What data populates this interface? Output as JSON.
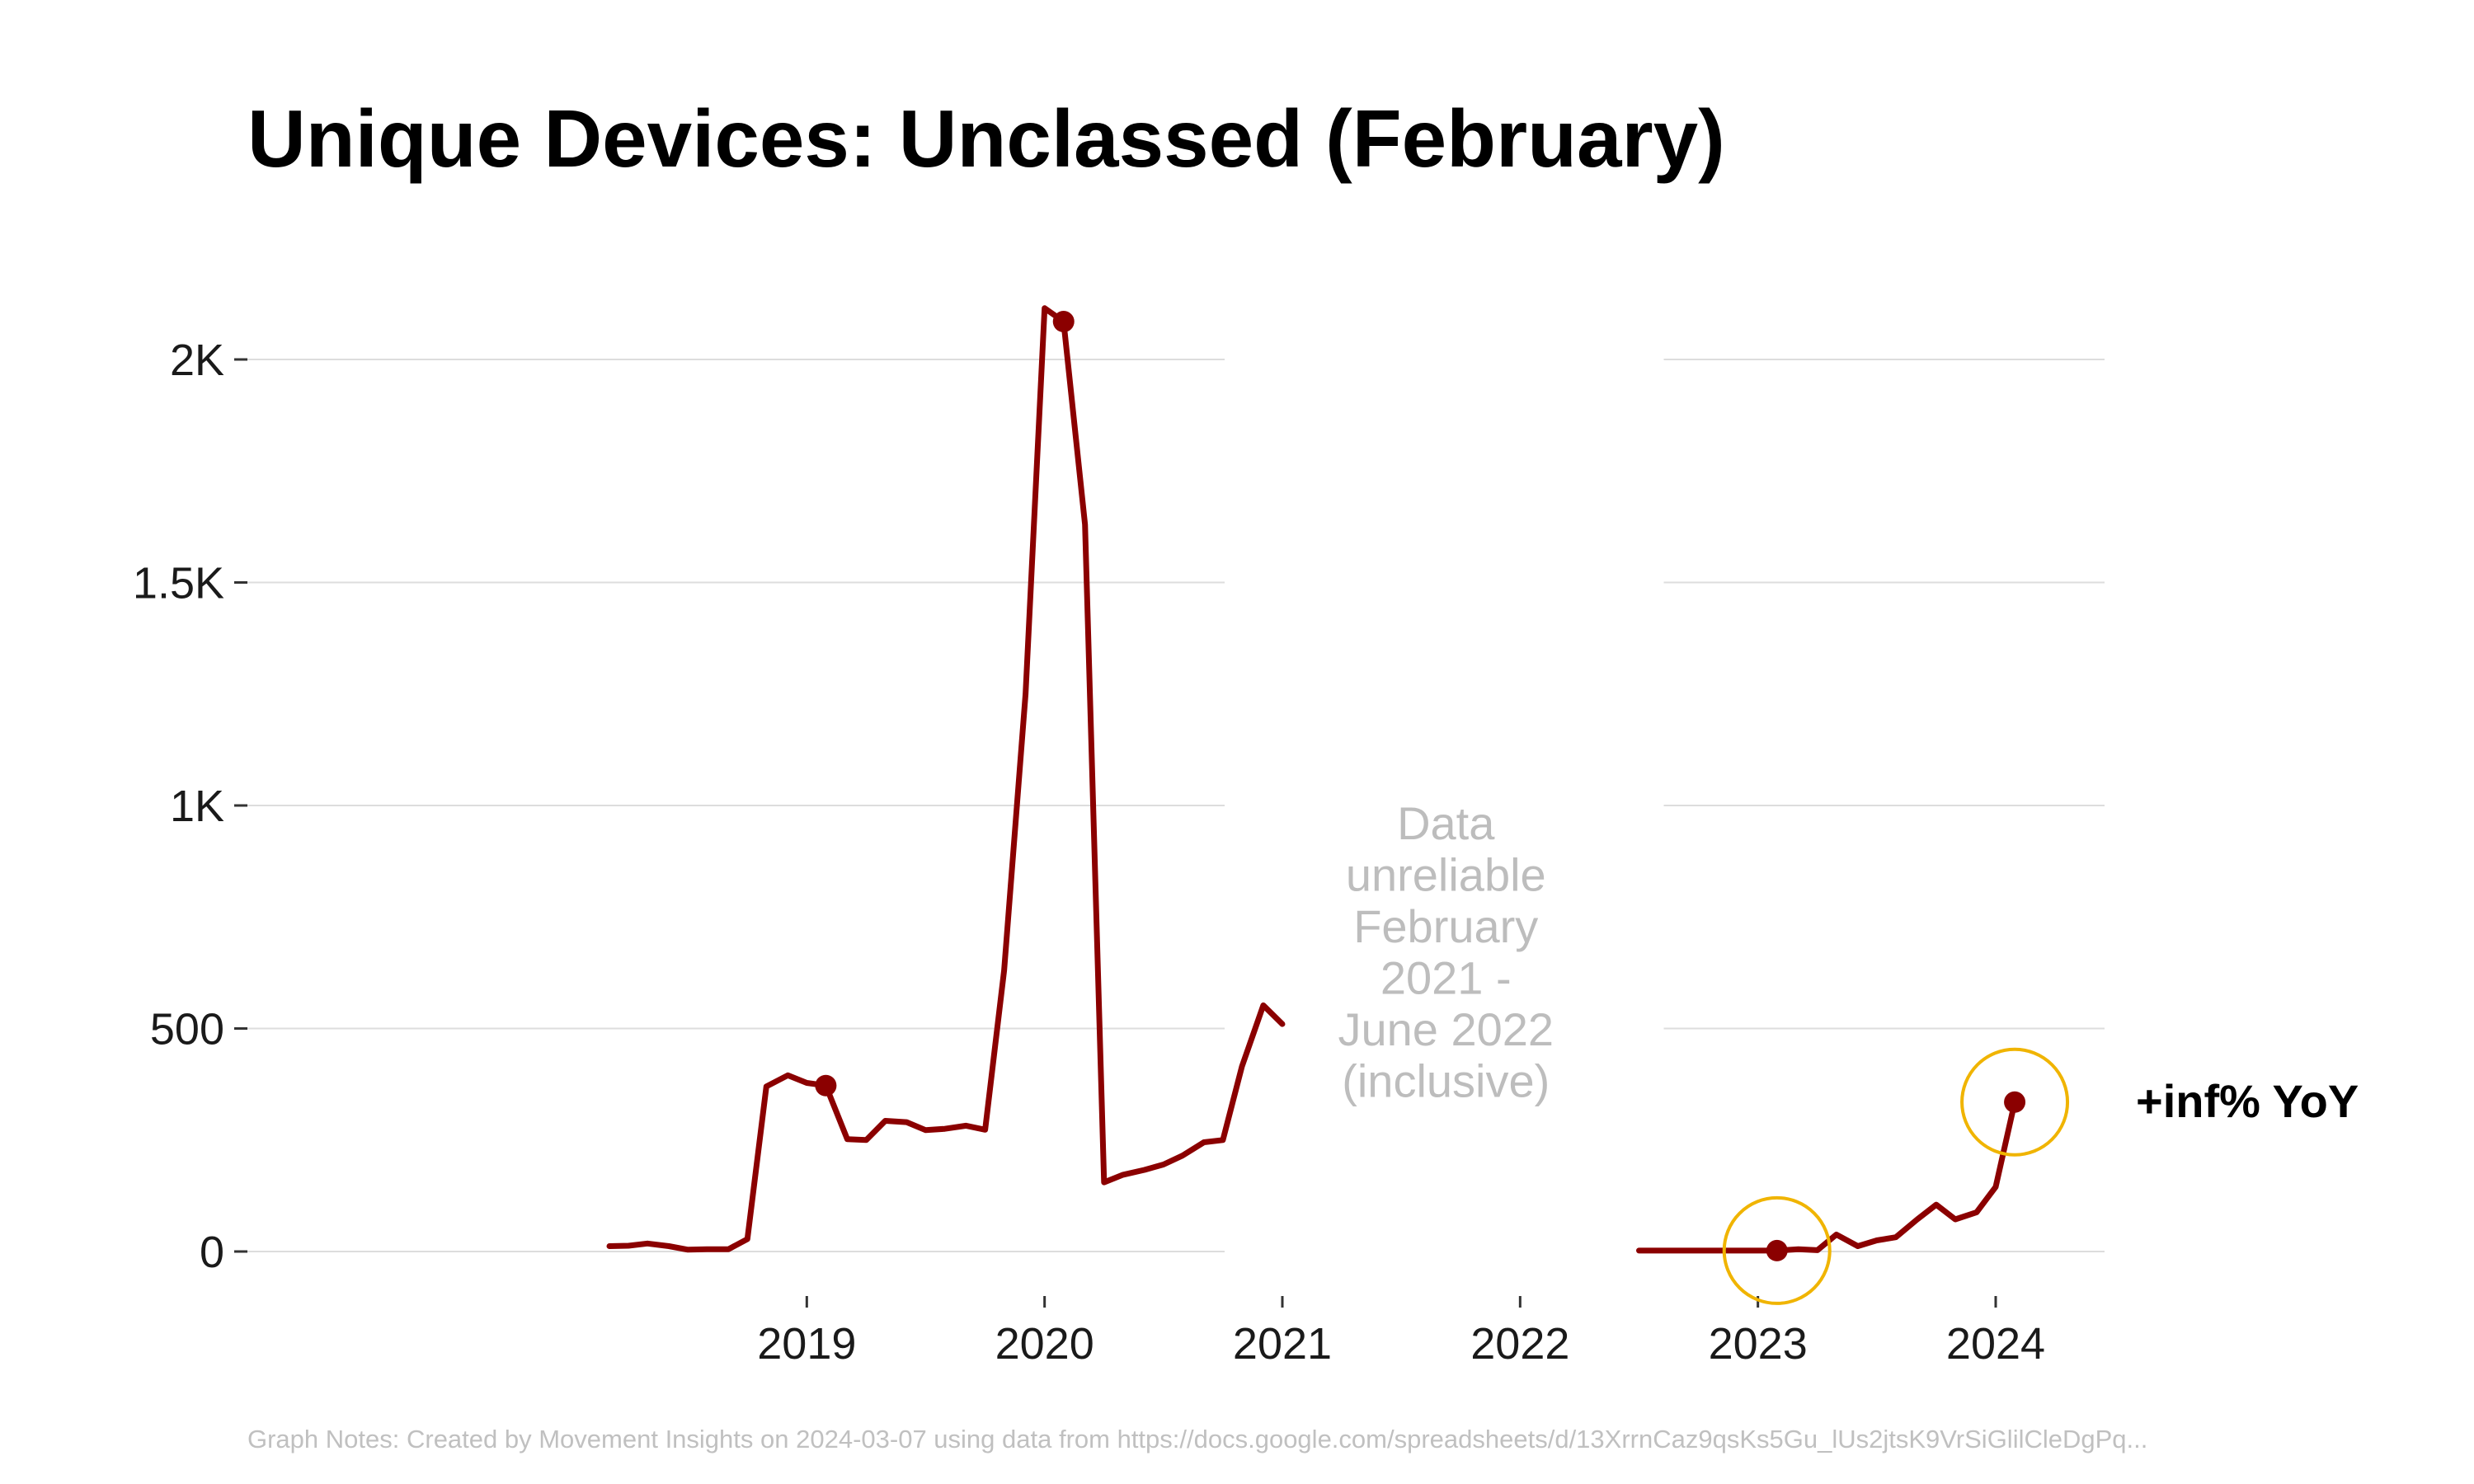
{
  "chart_data": {
    "type": "line",
    "title": "Unique Devices: Unclassed (February)",
    "xlabel": "",
    "ylabel": "",
    "ylim": [
      0,
      2200
    ],
    "y_ticks": [
      {
        "value": 0,
        "label": "0"
      },
      {
        "value": 500,
        "label": "500"
      },
      {
        "value": 1000,
        "label": "1K"
      },
      {
        "value": 1500,
        "label": "1.5K"
      },
      {
        "value": 2000,
        "label": "2K"
      }
    ],
    "x_ticks": [
      {
        "value": 2019,
        "label": "2019"
      },
      {
        "value": 2020,
        "label": "2020"
      },
      {
        "value": 2021,
        "label": "2021"
      },
      {
        "value": 2022,
        "label": "2022"
      },
      {
        "value": 2023,
        "label": "2023"
      },
      {
        "value": 2024,
        "label": "2024"
      }
    ],
    "series": [
      {
        "name": "Unique Devices",
        "color": "#8b0000",
        "segments": [
          [
            [
              2018.17,
              12
            ],
            [
              2018.25,
              13
            ],
            [
              2018.33,
              18
            ],
            [
              2018.42,
              12
            ],
            [
              2018.5,
              4
            ],
            [
              2018.58,
              5
            ],
            [
              2018.67,
              5
            ],
            [
              2018.75,
              28
            ],
            [
              2018.83,
              370
            ],
            [
              2018.92,
              395
            ],
            [
              2019.0,
              378
            ],
            [
              2019.08,
              372
            ],
            [
              2019.17,
              252
            ],
            [
              2019.25,
              250
            ],
            [
              2019.33,
              293
            ],
            [
              2019.42,
              290
            ],
            [
              2019.5,
              272
            ],
            [
              2019.58,
              275
            ],
            [
              2019.67,
              282
            ],
            [
              2019.75,
              273
            ],
            [
              2019.83,
              630
            ],
            [
              2019.92,
              1250
            ],
            [
              2020.0,
              2115
            ],
            [
              2020.08,
              2085
            ],
            [
              2020.17,
              1630
            ],
            [
              2020.25,
              155
            ],
            [
              2020.33,
              172
            ],
            [
              2020.42,
              183
            ],
            [
              2020.5,
              195
            ],
            [
              2020.58,
              215
            ],
            [
              2020.67,
              245
            ],
            [
              2020.75,
              250
            ],
            [
              2020.83,
              415
            ],
            [
              2020.92,
              552
            ],
            [
              2021.0,
              510
            ]
          ],
          [
            [
              2022.5,
              2
            ],
            [
              2022.58,
              2
            ],
            [
              2022.67,
              2
            ],
            [
              2022.75,
              2
            ],
            [
              2022.83,
              2
            ],
            [
              2022.92,
              2
            ],
            [
              2023.0,
              2
            ],
            [
              2023.08,
              2
            ],
            [
              2023.17,
              5
            ],
            [
              2023.25,
              3
            ],
            [
              2023.33,
              38
            ],
            [
              2023.42,
              12
            ],
            [
              2023.5,
              25
            ],
            [
              2023.58,
              32
            ],
            [
              2023.67,
              72
            ],
            [
              2023.75,
              105
            ],
            [
              2023.83,
              72
            ],
            [
              2023.92,
              88
            ],
            [
              2024.0,
              145
            ],
            [
              2024.08,
              335
            ]
          ]
        ]
      }
    ],
    "highlight_points": [
      {
        "x": 2019.08,
        "y": 372,
        "circled": false
      },
      {
        "x": 2020.08,
        "y": 2085,
        "circled": false
      },
      {
        "x": 2023.08,
        "y": 2,
        "circled": true
      },
      {
        "x": 2024.08,
        "y": 335,
        "circled": true
      }
    ],
    "gap": {
      "from": 2021.0,
      "to": 2022.5,
      "note_lines": [
        "Data",
        "unreliable",
        "February",
        "2021 -",
        "June 2022",
        "(inclusive)"
      ]
    },
    "annotation": "+inf% YoY",
    "colors": {
      "line": "#8b0000",
      "marker": "#8b0000",
      "highlight_ring": "#f0b400",
      "grid": "#dddddd",
      "gap_text": "#bdbdbd"
    }
  },
  "footnote": "Graph Notes: Created by Movement Insights  on 2024-03-07 using data from https://docs.google.com/spreadsheets/d/13XrrnCaz9qsKs5Gu_lUs2jtsK9VrSiGlilCleDgPq..."
}
